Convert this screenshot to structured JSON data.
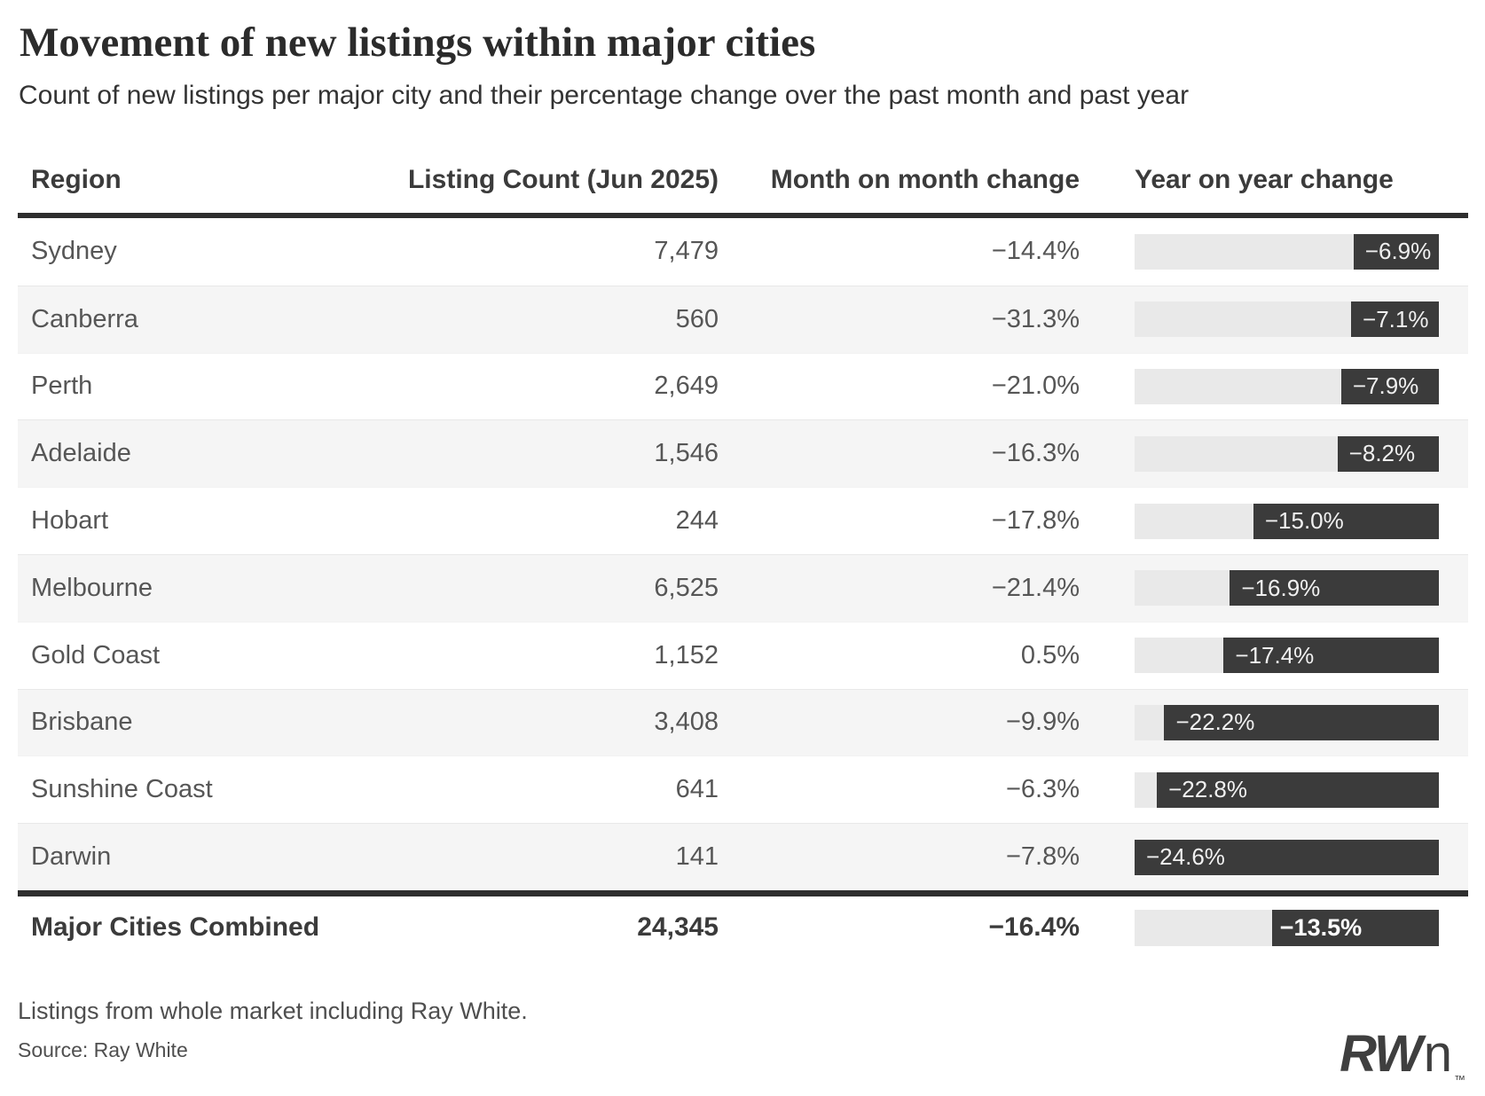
{
  "chart_data": {
    "type": "table",
    "title": "Movement of new listings within major cities",
    "subtitle": "Count of new listings per major city and their percentage change over the past month and past year",
    "columns": [
      "Region",
      "Listing Count (Jun 2025)",
      "Month on month change",
      "Year on year change"
    ],
    "yoy_axis": {
      "min": -24.6,
      "max": 0,
      "note": "horizontal bars anchored right, length proportional to |YoY %|"
    },
    "rows": [
      {
        "region": "Sydney",
        "listing_count": "7,479",
        "mom_change": "−14.4%",
        "yoy_change": "−6.9%",
        "yoy_value": -6.9,
        "count_value": 7479,
        "mom_value": -14.4
      },
      {
        "region": "Canberra",
        "listing_count": "560",
        "mom_change": "−31.3%",
        "yoy_change": "−7.1%",
        "yoy_value": -7.1,
        "count_value": 560,
        "mom_value": -31.3
      },
      {
        "region": "Perth",
        "listing_count": "2,649",
        "mom_change": "−21.0%",
        "yoy_change": "−7.9%",
        "yoy_value": -7.9,
        "count_value": 2649,
        "mom_value": -21.0
      },
      {
        "region": "Adelaide",
        "listing_count": "1,546",
        "mom_change": "−16.3%",
        "yoy_change": "−8.2%",
        "yoy_value": -8.2,
        "count_value": 1546,
        "mom_value": -16.3
      },
      {
        "region": "Hobart",
        "listing_count": "244",
        "mom_change": "−17.8%",
        "yoy_change": "−15.0%",
        "yoy_value": -15.0,
        "count_value": 244,
        "mom_value": -17.8
      },
      {
        "region": "Melbourne",
        "listing_count": "6,525",
        "mom_change": "−21.4%",
        "yoy_change": "−16.9%",
        "yoy_value": -16.9,
        "count_value": 6525,
        "mom_value": -21.4
      },
      {
        "region": "Gold Coast",
        "listing_count": "1,152",
        "mom_change": "0.5%",
        "yoy_change": "−17.4%",
        "yoy_value": -17.4,
        "count_value": 1152,
        "mom_value": 0.5
      },
      {
        "region": "Brisbane",
        "listing_count": "3,408",
        "mom_change": "−9.9%",
        "yoy_change": "−22.2%",
        "yoy_value": -22.2,
        "count_value": 3408,
        "mom_value": -9.9
      },
      {
        "region": "Sunshine Coast",
        "listing_count": "641",
        "mom_change": "−6.3%",
        "yoy_change": "−22.8%",
        "yoy_value": -22.8,
        "count_value": 641,
        "mom_value": -6.3
      },
      {
        "region": "Darwin",
        "listing_count": "141",
        "mom_change": "−7.8%",
        "yoy_change": "−24.6%",
        "yoy_value": -24.6,
        "count_value": 141,
        "mom_value": -7.8
      }
    ],
    "total_row": {
      "region": "Major Cities Combined",
      "listing_count": "24,345",
      "mom_change": "−16.4%",
      "yoy_change": "−13.5%",
      "yoy_value": -13.5,
      "count_value": 24345,
      "mom_value": -16.4
    },
    "note": "Listings from whole market including Ray White.",
    "source": "Source: Ray White"
  },
  "logo": {
    "bold": "RW",
    "light": "n",
    "tm": "™"
  },
  "colors": {
    "bar": "#3b3b3b",
    "track": "#e9e9e9",
    "alt_row": "#f5f5f5",
    "rule": "#2e2e2e"
  }
}
